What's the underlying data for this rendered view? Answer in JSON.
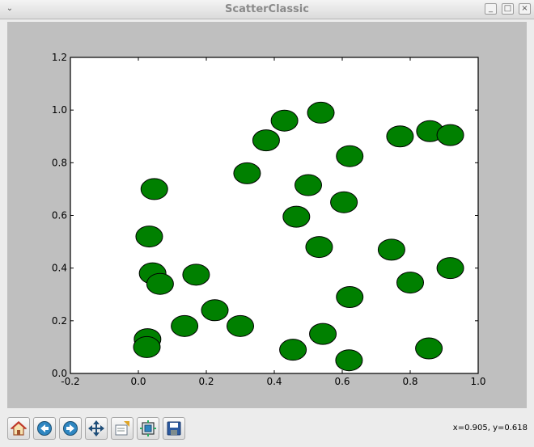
{
  "window": {
    "title": "ScatterClassic",
    "menu_icon": "chevron-down-icon",
    "controls": [
      "minimize-icon",
      "maximize-icon",
      "close-icon"
    ]
  },
  "toolbar": {
    "buttons": [
      {
        "name": "home-button",
        "icon": "home-icon"
      },
      {
        "name": "back-button",
        "icon": "back-arrow-icon"
      },
      {
        "name": "forward-button",
        "icon": "forward-arrow-icon"
      },
      {
        "name": "pan-button",
        "icon": "move-arrows-icon"
      },
      {
        "name": "zoom-button",
        "icon": "zoom-rect-icon"
      },
      {
        "name": "subplots-button",
        "icon": "configure-subplots-icon"
      },
      {
        "name": "save-button",
        "icon": "floppy-disk-icon"
      }
    ],
    "coords": "x=0.905, y=0.618"
  },
  "chart_data": {
    "type": "scatter",
    "title": "",
    "xlabel": "",
    "ylabel": "",
    "xlim": [
      -0.2,
      1.0
    ],
    "ylim": [
      0.0,
      1.2
    ],
    "xticks": [
      "-0.2",
      "0.0",
      "0.2",
      "0.4",
      "0.6",
      "0.8",
      "1.0"
    ],
    "yticks": [
      "0.0",
      "0.2",
      "0.4",
      "0.6",
      "0.8",
      "1.0",
      "1.2"
    ],
    "grid": false,
    "marker_color": "#008000",
    "points": [
      {
        "x": 0.047,
        "y": 0.7
      },
      {
        "x": 0.032,
        "y": 0.52
      },
      {
        "x": 0.042,
        "y": 0.38
      },
      {
        "x": 0.064,
        "y": 0.34
      },
      {
        "x": 0.17,
        "y": 0.375
      },
      {
        "x": 0.027,
        "y": 0.13
      },
      {
        "x": 0.025,
        "y": 0.1
      },
      {
        "x": 0.136,
        "y": 0.18
      },
      {
        "x": 0.225,
        "y": 0.24
      },
      {
        "x": 0.3,
        "y": 0.18
      },
      {
        "x": 0.32,
        "y": 0.76
      },
      {
        "x": 0.376,
        "y": 0.885
      },
      {
        "x": 0.43,
        "y": 0.96
      },
      {
        "x": 0.537,
        "y": 0.99
      },
      {
        "x": 0.5,
        "y": 0.715
      },
      {
        "x": 0.465,
        "y": 0.595
      },
      {
        "x": 0.532,
        "y": 0.48
      },
      {
        "x": 0.605,
        "y": 0.65
      },
      {
        "x": 0.622,
        "y": 0.825
      },
      {
        "x": 0.622,
        "y": 0.29
      },
      {
        "x": 0.455,
        "y": 0.09
      },
      {
        "x": 0.543,
        "y": 0.15
      },
      {
        "x": 0.62,
        "y": 0.05
      },
      {
        "x": 0.745,
        "y": 0.47
      },
      {
        "x": 0.77,
        "y": 0.9
      },
      {
        "x": 0.858,
        "y": 0.92
      },
      {
        "x": 0.918,
        "y": 0.905
      },
      {
        "x": 0.918,
        "y": 0.4
      },
      {
        "x": 0.8,
        "y": 0.345
      },
      {
        "x": 0.855,
        "y": 0.095
      }
    ]
  }
}
